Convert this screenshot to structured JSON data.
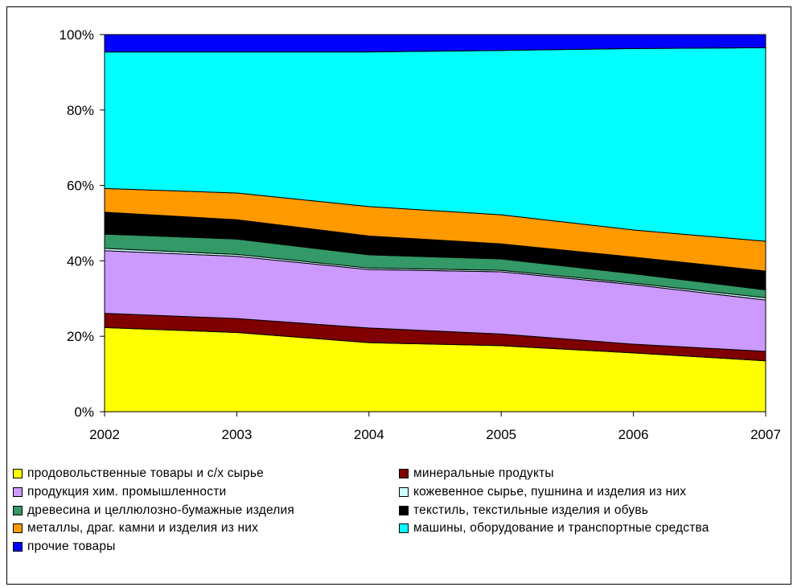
{
  "chart_data": {
    "type": "area",
    "stacked": true,
    "percent": true,
    "x": [
      "2002",
      "2003",
      "2004",
      "2005",
      "2006",
      "2007"
    ],
    "ylim": [
      0,
      100
    ],
    "yticks": [
      "0%",
      "20%",
      "40%",
      "60%",
      "80%",
      "100%"
    ],
    "grid": false,
    "legend_position": "bottom",
    "series": [
      {
        "name": "продовольственные товары и с/х сырье",
        "color": "#ffff00",
        "values": [
          22.3,
          21.0,
          18.3,
          17.5,
          15.6,
          13.5
        ]
      },
      {
        "name": "минеральные продукты",
        "color": "#800000",
        "values": [
          3.8,
          3.7,
          3.9,
          3.1,
          2.3,
          2.5
        ]
      },
      {
        "name": "продукция хим. промышленности",
        "color": "#cc99ff",
        "values": [
          16.6,
          16.5,
          15.5,
          16.5,
          15.8,
          13.6
        ]
      },
      {
        "name": "кожевенное сырье, пушнина и изделия из них",
        "color": "#ccffff",
        "values": [
          0.6,
          0.5,
          0.4,
          0.4,
          0.4,
          0.6
        ]
      },
      {
        "name": "древесина и целлюлозно-бумажные изделия",
        "color": "#339966",
        "values": [
          3.8,
          4.1,
          3.5,
          3.0,
          2.5,
          2.1
        ]
      },
      {
        "name": "текстиль, текстильные изделия и обувь",
        "color": "#000000",
        "values": [
          5.8,
          5.1,
          5.0,
          4.0,
          4.4,
          5.0
        ]
      },
      {
        "name": "металлы, драг. камни и изделия из них",
        "color": "#ff9900",
        "values": [
          6.3,
          7.1,
          7.8,
          7.7,
          7.2,
          7.9
        ]
      },
      {
        "name": "машины, оборудование и транспортные средства",
        "color": "#00ffff",
        "values": [
          36.2,
          37.4,
          41.0,
          43.6,
          48.1,
          51.3
        ]
      },
      {
        "name": "прочие товары",
        "color": "#0000ff",
        "values": [
          4.6,
          4.6,
          4.6,
          4.2,
          3.7,
          3.5
        ]
      }
    ]
  }
}
